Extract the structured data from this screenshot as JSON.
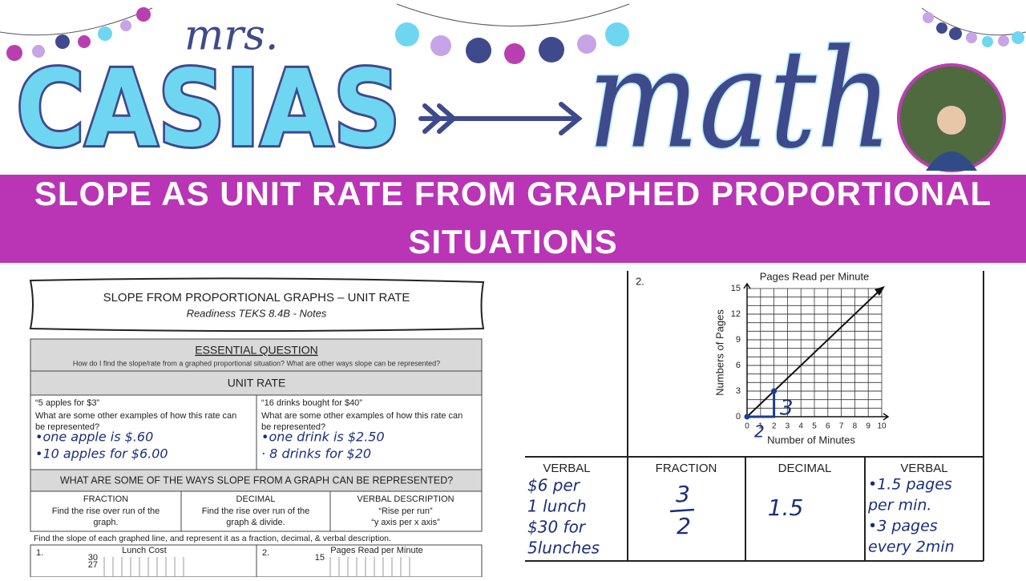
{
  "header": {
    "mrs": "mrs.",
    "brand": "CASIAS",
    "math": "math"
  },
  "banner": {
    "line1": "SLOPE AS UNIT RATE FROM GRAPHED PROPORTIONAL",
    "line2": "SITUATIONS"
  },
  "worksheet": {
    "title": "SLOPE FROM PROPORTIONAL GRAPHS – UNIT RATE",
    "subtitle": "Readiness TEKS 8.4B - Notes",
    "essential_heading": "ESSENTIAL QUESTION",
    "essential_question": "How do I find the slope/rate from a graphed proportional situation? What are other ways slope can be represented?",
    "unit_rate_heading": "UNIT RATE",
    "examples": [
      {
        "quote": "“5 apples for $3”",
        "prompt": [
          "What are some other examples of how this rate can",
          "be represented?"
        ],
        "answers": [
          "•one apple is $.60",
          "•10 apples for $6.00"
        ]
      },
      {
        "quote": "“16 drinks bought for $40”",
        "prompt": [
          "What are some other examples of how this rate can",
          "be represented?"
        ],
        "answers": [
          "•one drink is $2.50",
          "· 8 drinks for $20"
        ]
      }
    ],
    "ways_heading": "WHAT ARE SOME OF THE WAYS SLOPE FROM A GRAPH CAN BE REPRESENTED?",
    "ways": [
      {
        "name": "FRACTION",
        "desc": [
          "Find the rise over run of the",
          "graph."
        ]
      },
      {
        "name": "DECIMAL",
        "desc": [
          "Find the rise over run of the",
          "graph & divide."
        ]
      },
      {
        "name": "VERBAL DESCRIPTION",
        "desc": [
          "“Rise per run”",
          "“y axis per x axis”"
        ]
      }
    ],
    "instructions": "Find the slope of each graphed line, and represent it as a fraction, decimal, & verbal description.",
    "mini_graphs": [
      {
        "number": "1.",
        "title": "Lunch Cost",
        "ticks": [
          "30",
          "27"
        ]
      },
      {
        "number": "2.",
        "title": "Pages Read per Minute",
        "ticks": [
          "15"
        ]
      }
    ]
  },
  "problem": {
    "number": "2.",
    "graph": {
      "type": "line",
      "title": "Pages Read per Minute",
      "x_label": "Number of Minutes",
      "y_label": "Numbers of Pages",
      "xlim": [
        0,
        10
      ],
      "ylim": [
        0,
        15
      ],
      "xticks": [
        0,
        1,
        2,
        3,
        4,
        5,
        6,
        7,
        8,
        9,
        10
      ],
      "yticks": [
        0,
        3,
        6,
        9,
        12,
        15
      ],
      "line": {
        "x": [
          0,
          10
        ],
        "y": [
          0,
          15
        ],
        "color": "#111111"
      },
      "points": {
        "x": [
          0,
          2
        ],
        "y": [
          0,
          3
        ],
        "color": "#1a3d8f"
      },
      "run_label": "2",
      "rise_label": "3"
    },
    "table": {
      "headers": [
        "VERBAL",
        "FRACTION",
        "DECIMAL",
        "VERBAL"
      ],
      "verbal_left": [
        "$6 per",
        "1 lunch",
        "$30 for",
        "5lunches"
      ],
      "fraction": {
        "numerator": "3",
        "denominator": "2"
      },
      "decimal": "1.5",
      "verbal_right": [
        "•1.5 pages",
        "per min.",
        "•3 pages",
        "every 2min"
      ]
    }
  }
}
